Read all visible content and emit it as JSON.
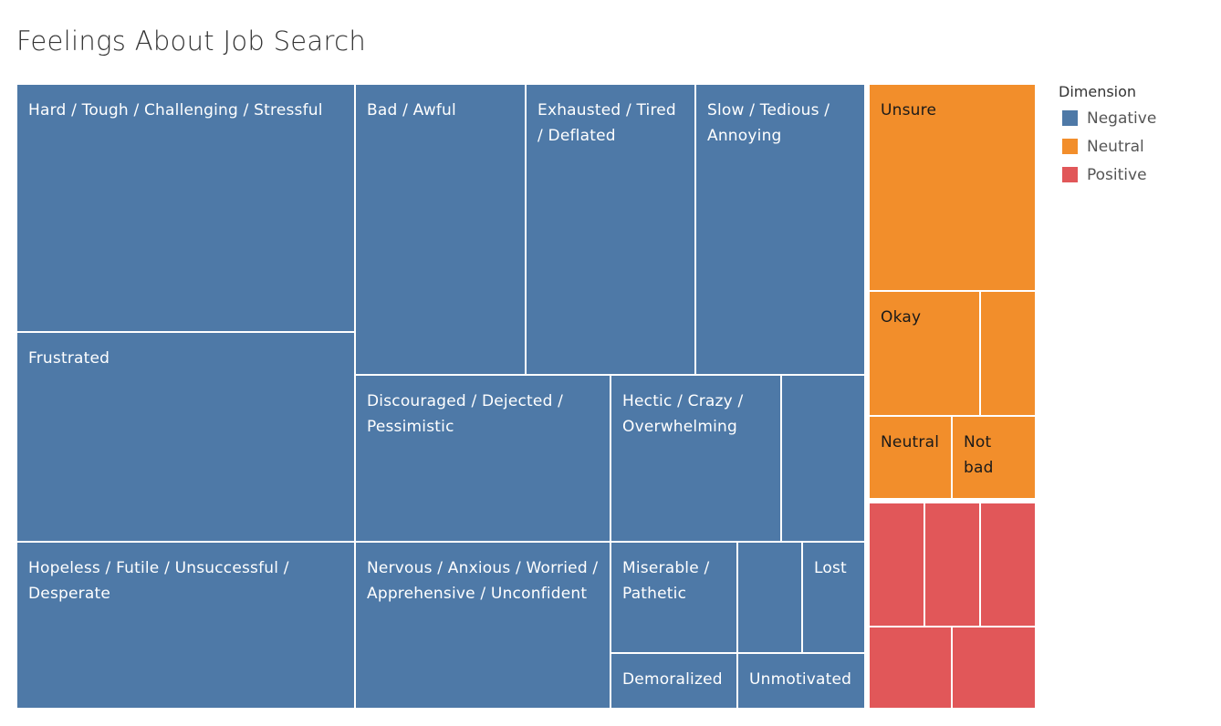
{
  "title": "Feelings About Job Search",
  "legend": {
    "title": "Dimension",
    "items": [
      {
        "name": "Negative",
        "color": "#4E79A7"
      },
      {
        "name": "Neutral",
        "color": "#F28E2B"
      },
      {
        "name": "Positive",
        "color": "#E15759"
      }
    ]
  },
  "chart_data": {
    "type": "treemap",
    "title": "Feelings About Job Search",
    "color_by": "Dimension",
    "groups": [
      {
        "name": "Negative",
        "color": "#4E79A7",
        "items": [
          {
            "label": "Hard / Tough / Challenging / Stressful"
          },
          {
            "label": "Frustrated"
          },
          {
            "label": "Hopeless / Futile / Unsuccessful / Desperate"
          },
          {
            "label": "Bad / Awful"
          },
          {
            "label": "Exhausted / Tired / Deflated"
          },
          {
            "label": "Slow / Tedious / Annoying"
          },
          {
            "label": "Discouraged / Dejected / Pessimistic"
          },
          {
            "label": "Hectic / Crazy / Overwhelming"
          },
          {
            "label": ""
          },
          {
            "label": "Nervous / Anxious / Worried / Apprehensive / Unconfident"
          },
          {
            "label": "Miserable / Pathetic"
          },
          {
            "label": ""
          },
          {
            "label": "Lost"
          },
          {
            "label": "Demoralized"
          },
          {
            "label": "Unmotivated"
          }
        ]
      },
      {
        "name": "Neutral",
        "color": "#F28E2B",
        "items": [
          {
            "label": "Unsure"
          },
          {
            "label": "Okay"
          },
          {
            "label": ""
          },
          {
            "label": "Neutral"
          },
          {
            "label": "Not bad"
          }
        ]
      },
      {
        "name": "Positive",
        "color": "#E15759",
        "items": [
          {
            "label": ""
          },
          {
            "label": ""
          },
          {
            "label": ""
          },
          {
            "label": ""
          },
          {
            "label": ""
          }
        ]
      }
    ]
  }
}
